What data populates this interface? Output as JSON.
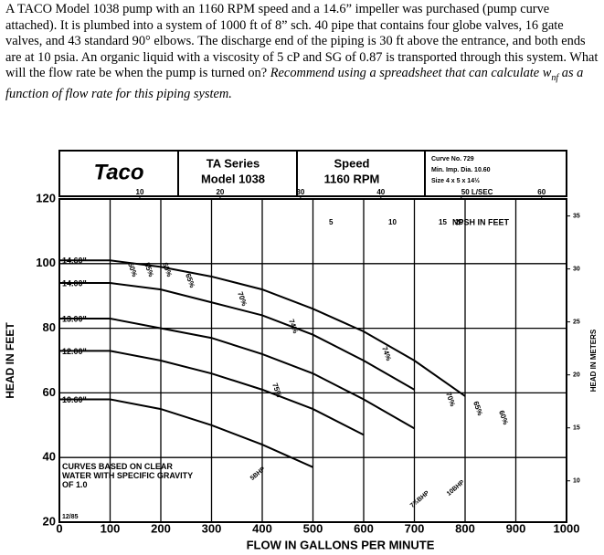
{
  "problem": {
    "text": "A TACO Model 1038 pump with an 1160 RPM speed and a 14.6” impeller was purchased (pump curve attached). It is plumbed into a system of 1000 ft of 8” sch. 40 pipe that contains four globe valves, 16 gate valves, and 43 standard 90° elbows. The discharge end of the piping is 30 ft above the entrance, and both ends are at 10 psia. An organic liquid with a viscosity of 5 cP and SG of 0.87 is transported through this system. What will the flow rate be when the pump is turned on? ",
    "emphasis": "Recommend using a spreadsheet that can calculate ",
    "w": "w",
    "sub": "nf",
    "emphasis_end": " as a function of flow rate for this piping system."
  },
  "chart_data": {
    "type": "line",
    "brand": "Taco",
    "series_name": "TA Series",
    "model": "Model 1038",
    "speed_title": "Speed",
    "speed": "1160 RPM",
    "curve_no": "Curve No. 729",
    "min_imp": "Min. Imp. Dia. 10.60",
    "size": "Size 4 x 5 x 14½",
    "x_label": "FLOW IN GALLONS PER MINUTE",
    "y_label": "HEAD IN FEET",
    "y2_label": "HEAD IN METERS",
    "xlim": [
      0,
      1000
    ],
    "ylim": [
      20,
      120
    ],
    "y2lim": [
      6.1,
      36.6
    ],
    "x2lim": [
      0,
      63.1
    ],
    "xticks": [
      0,
      100,
      200,
      300,
      400,
      500,
      600,
      700,
      800,
      900,
      1000
    ],
    "yticks": [
      20,
      40,
      60,
      80,
      100,
      120
    ],
    "y2ticks": [
      10,
      15,
      20,
      25,
      30,
      35
    ],
    "x2ticks": [
      10,
      20,
      30,
      40,
      {
        "value": 50,
        "label": "50 L/SEC"
      },
      60
    ],
    "grid": true,
    "x": [
      0,
      100,
      200,
      300,
      400,
      500,
      600,
      700,
      800
    ],
    "series": [
      {
        "name": "14.60\"",
        "color": "#000",
        "values": [
          101,
          101,
          99,
          96,
          92,
          86,
          79,
          70,
          59
        ]
      },
      {
        "name": "14.00\"",
        "color": "#000",
        "values": [
          94,
          94,
          92,
          88,
          84,
          78,
          70,
          61,
          null
        ]
      },
      {
        "name": "13.00\"",
        "color": "#000",
        "values": [
          83,
          83,
          80,
          77,
          72,
          66,
          58,
          49,
          null
        ]
      },
      {
        "name": "12.00\"",
        "color": "#000",
        "values": [
          73,
          73,
          70,
          66,
          61,
          55,
          47,
          null,
          null
        ]
      },
      {
        "name": "10.60\"",
        "color": "#000",
        "values": [
          58,
          58,
          55,
          50,
          44,
          37,
          null,
          null,
          null
        ]
      }
    ],
    "annotations": [
      "NPSH IN FEET",
      "5",
      "10",
      "15",
      "20",
      "CURVES BASED ON CLEAR WATER WITH SPECIFIC GRAVITY OF 1.0",
      "12/85",
      "50%",
      "55%",
      "60%",
      "65%",
      "70%",
      "74%",
      "75%",
      "74%",
      "70%",
      "65%",
      "60%",
      "5BHP",
      "7½BHP",
      "10BHP"
    ]
  }
}
